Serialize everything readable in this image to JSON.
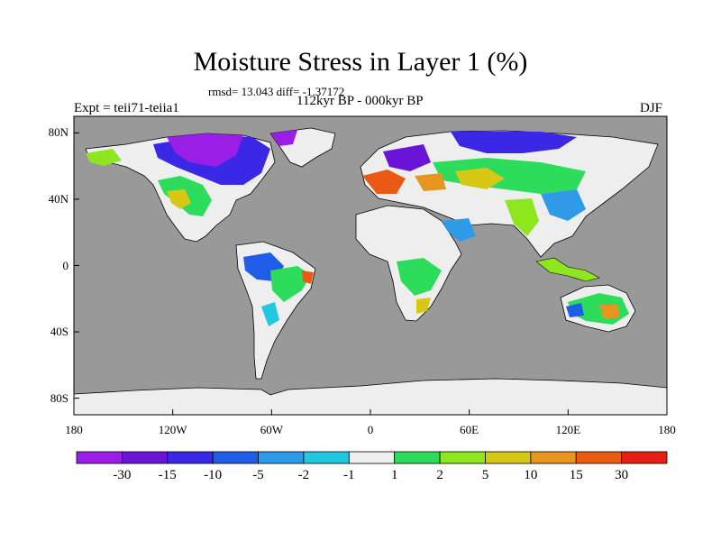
{
  "header": {
    "title": "Moisture Stress in Layer 1 (%)",
    "stats": "rmsd= 13.043 diff= -1.37172",
    "period": "112kyr BP - 000kyr BP",
    "experiment": "Expt = teii71-teiia1",
    "season": "DJF"
  },
  "axes": {
    "y_ticks": [
      "80N",
      "40N",
      "0",
      "40S",
      "80S"
    ],
    "y_values": [
      80,
      40,
      0,
      -40,
      -80
    ],
    "x_ticks": [
      "180",
      "120W",
      "60W",
      "0",
      "60E",
      "120E",
      "180"
    ],
    "x_values": [
      -180,
      -120,
      -60,
      0,
      60,
      120,
      180
    ]
  },
  "colorbar": {
    "colors": [
      "#9a1ee6",
      "#6a14d8",
      "#3a28e6",
      "#1f5ce8",
      "#2f9be8",
      "#22c8e0",
      "#eeeeee",
      "#2edc5c",
      "#8ee61e",
      "#d6c814",
      "#e6961e",
      "#ea5a14",
      "#e61e14"
    ],
    "labels": [
      "-30",
      "-15",
      "-10",
      "-5",
      "-2",
      "-1",
      "1",
      "2",
      "5",
      "10",
      "15",
      "30"
    ]
  },
  "colors": {
    "ocean": "#999999",
    "neutral_land": "#eeeeee"
  }
}
